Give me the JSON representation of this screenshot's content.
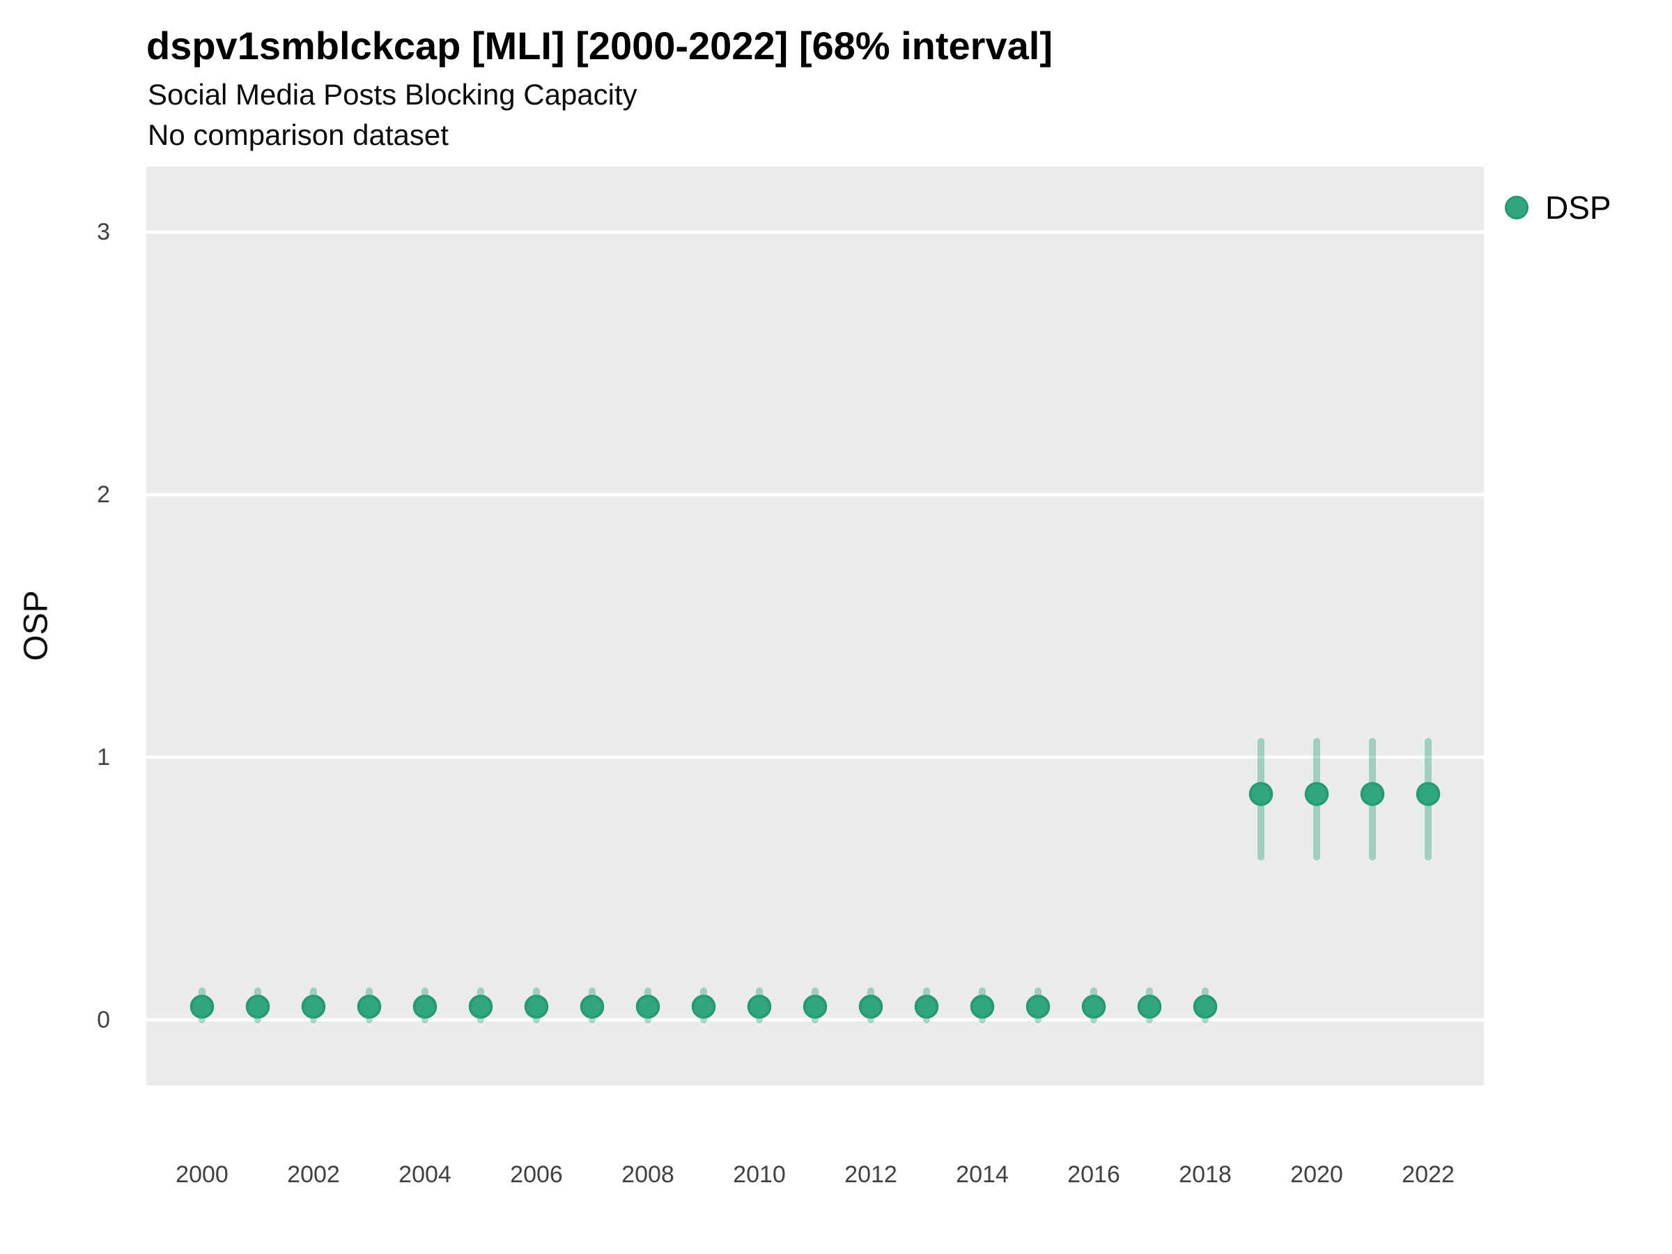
{
  "chart_data": {
    "type": "scatter",
    "title": "dspv1smblckcap [MLI] [2000-2022] [68% interval]",
    "subtitle": "Social Media Posts Blocking Capacity",
    "note": "No comparison dataset",
    "xlabel": "",
    "ylabel": "OSP",
    "legend": {
      "label": "DSP",
      "position": "right-top"
    },
    "x_domain": [
      1999,
      2023
    ],
    "ylim": [
      -0.25,
      3.25
    ],
    "y_ticks": [
      0,
      1,
      2,
      3
    ],
    "y_tick_labels": [
      "0",
      "1",
      "2",
      "3"
    ],
    "x_ticks": [
      2000,
      2002,
      2004,
      2006,
      2008,
      2010,
      2012,
      2014,
      2016,
      2018,
      2020,
      2022
    ],
    "x_tick_labels": [
      "2000",
      "2002",
      "2004",
      "2006",
      "2008",
      "2010",
      "2012",
      "2014",
      "2016",
      "2018",
      "2020",
      "2022"
    ],
    "grid": "horizontal-major-only",
    "series": [
      {
        "name": "DSP",
        "x": [
          2000,
          2001,
          2002,
          2003,
          2004,
          2005,
          2006,
          2007,
          2008,
          2009,
          2010,
          2011,
          2012,
          2013,
          2014,
          2015,
          2016,
          2017,
          2018,
          2019,
          2020,
          2021,
          2022
        ],
        "y": [
          0.05,
          0.05,
          0.05,
          0.05,
          0.05,
          0.05,
          0.05,
          0.05,
          0.05,
          0.05,
          0.05,
          0.05,
          0.05,
          0.05,
          0.05,
          0.05,
          0.05,
          0.05,
          0.05,
          0.86,
          0.86,
          0.86,
          0.86
        ],
        "y_lo": [
          0.0,
          0.0,
          0.0,
          0.0,
          0.0,
          0.0,
          0.0,
          0.0,
          0.0,
          0.0,
          0.0,
          0.0,
          0.0,
          0.0,
          0.0,
          0.0,
          0.0,
          0.0,
          0.0,
          0.62,
          0.62,
          0.62,
          0.62
        ],
        "y_hi": [
          0.11,
          0.11,
          0.11,
          0.11,
          0.11,
          0.11,
          0.11,
          0.11,
          0.11,
          0.11,
          0.11,
          0.11,
          0.11,
          0.11,
          0.11,
          0.11,
          0.11,
          0.11,
          0.11,
          1.06,
          1.06,
          1.06,
          1.06
        ]
      }
    ],
    "colors": {
      "point": "#31A67E",
      "point_stroke": "#27996E",
      "interval": "#2EA87D",
      "interval_opacity": 0.4,
      "panel_bg": "#EBEBEB",
      "gridline": "#FFFFFF",
      "figure_bg": "#FFFFFF"
    }
  }
}
